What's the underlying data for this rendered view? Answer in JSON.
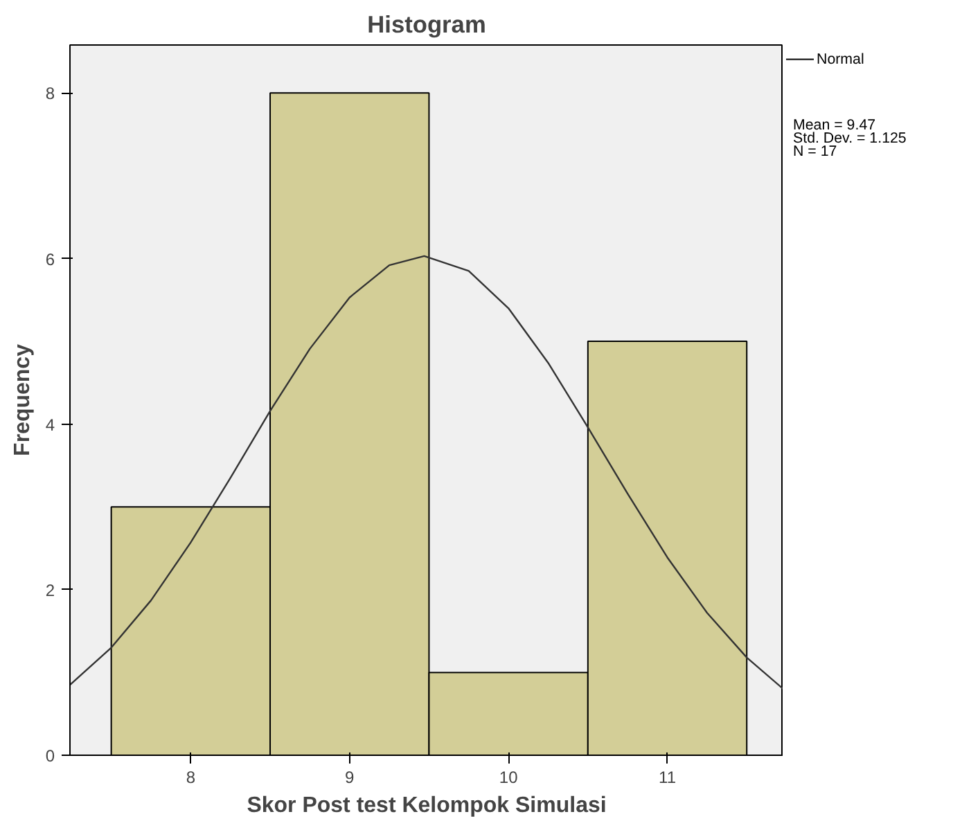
{
  "chart_data": {
    "type": "histogram",
    "title": "Histogram",
    "xlabel": "Skor Post test Kelompok Simulasi",
    "ylabel": "Frequency",
    "series": [
      {
        "bins": [
          7.5,
          8.5,
          9.5,
          10.5,
          11.5
        ],
        "values": [
          3,
          8,
          1,
          5
        ],
        "color": "#d3ce97"
      },
      {
        "type": "line",
        "name": "Normal",
        "color": "#333333",
        "x": [
          7.24,
          7.5,
          7.75,
          8.0,
          8.25,
          8.5,
          8.75,
          9.0,
          9.25,
          9.47,
          9.75,
          10.0,
          10.25,
          10.5,
          10.75,
          11.0,
          11.25,
          11.5,
          11.73
        ],
        "values": [
          0.85,
          1.3,
          1.87,
          2.57,
          3.35,
          4.16,
          4.91,
          5.53,
          5.92,
          6.03,
          5.85,
          5.4,
          4.74,
          3.96,
          3.16,
          2.39,
          1.72,
          1.18,
          0.8
        ]
      }
    ],
    "xlim": [
      7.24,
      11.73
    ],
    "ylim": [
      0,
      8.58
    ],
    "xticks": [
      8,
      9,
      10,
      11
    ],
    "yticks": [
      0,
      2,
      4,
      6,
      8
    ],
    "annotations": [
      "Mean = 9.47",
      "Std. Dev. = 1.125",
      "N = 17"
    ],
    "legend": "top right",
    "grid": false
  }
}
